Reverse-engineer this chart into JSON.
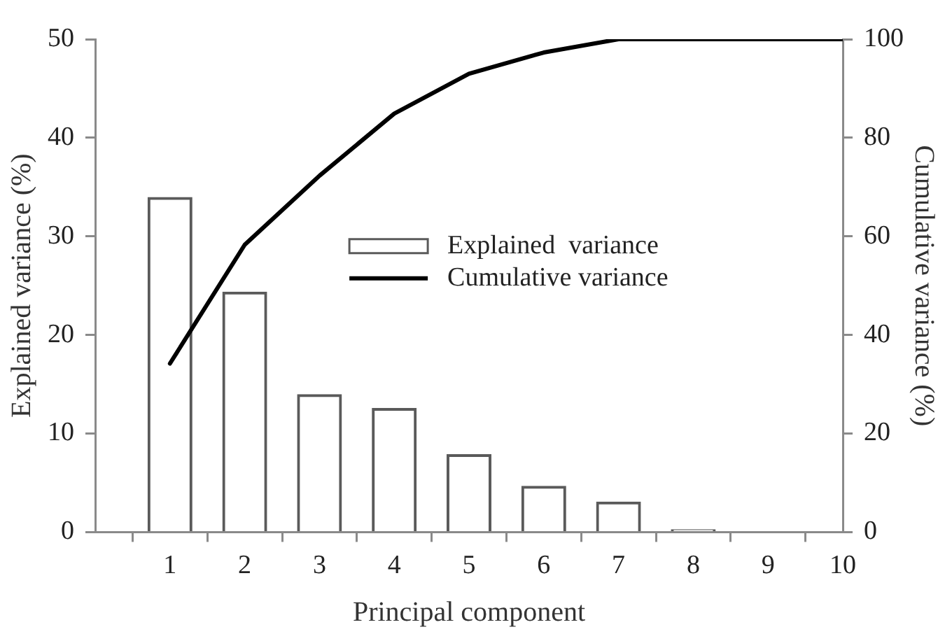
{
  "chart_data": {
    "type": "bar",
    "xlabel": "Principal component",
    "ylabel": "Explained variance (%)",
    "y2label": "Cumulative variance (%)",
    "x": [
      1,
      2,
      3,
      4,
      5,
      6,
      7,
      8,
      9,
      10
    ],
    "series": [
      {
        "name": "Explained  variance",
        "color": "#5a5a5a",
        "values": [
          34.0,
          24.4,
          14.0,
          12.6,
          7.9,
          4.7,
          3.1,
          0.3,
          0,
          0
        ]
      },
      {
        "name": "Cumulative variance",
        "type": "line",
        "axis": "y2",
        "color": "#000000",
        "marker": "none",
        "line_style": "solid",
        "values": [
          34.2,
          58.3,
          72.3,
          84.9,
          93.0,
          97.3,
          100,
          100,
          100,
          100
        ]
      }
    ],
    "xlim": [
      0,
      10
    ],
    "xticks": [
      1,
      2,
      3,
      4,
      5,
      6,
      7,
      8,
      9,
      10
    ],
    "ylim": [
      0,
      50
    ],
    "yticks": [
      0,
      10,
      20,
      30,
      40,
      50
    ],
    "y2lim": [
      0,
      100
    ],
    "y2ticks": [
      0,
      20,
      40,
      60,
      80,
      100
    ],
    "grid": false,
    "legend": "center"
  }
}
